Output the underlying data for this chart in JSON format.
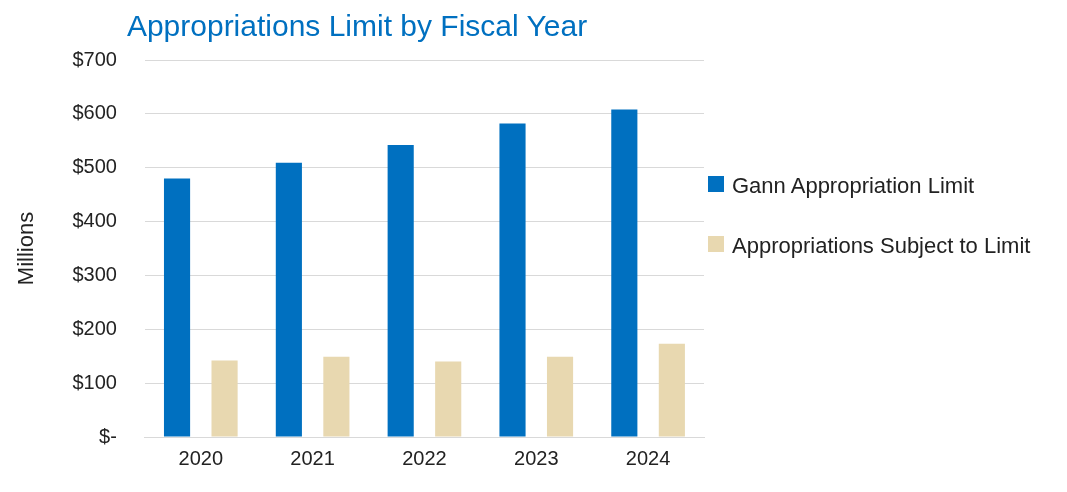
{
  "chart_data": {
    "type": "bar",
    "title": "Appropriations Limit by Fiscal Year",
    "ylabel": "Millions",
    "categories": [
      "2020",
      "2021",
      "2022",
      "2023",
      "2024"
    ],
    "series": [
      {
        "name": "Gann Appropriation Limit",
        "color": "#0070c0",
        "values": [
          480,
          509,
          542,
          582,
          608
        ]
      },
      {
        "name": "Appropriations Subject to Limit",
        "color": "#e8d8b0",
        "values": [
          142,
          149,
          140,
          149,
          173
        ]
      }
    ],
    "ylim": [
      0,
      700
    ],
    "yticks": [
      {
        "value": 0,
        "label": "$-"
      },
      {
        "value": 100,
        "label": "$100"
      },
      {
        "value": 200,
        "label": "$200"
      },
      {
        "value": 300,
        "label": "$300"
      },
      {
        "value": 400,
        "label": "$400"
      },
      {
        "value": 500,
        "label": "$500"
      },
      {
        "value": 600,
        "label": "$600"
      },
      {
        "value": 700,
        "label": "$700"
      }
    ],
    "grid": "y",
    "legend": "right"
  }
}
